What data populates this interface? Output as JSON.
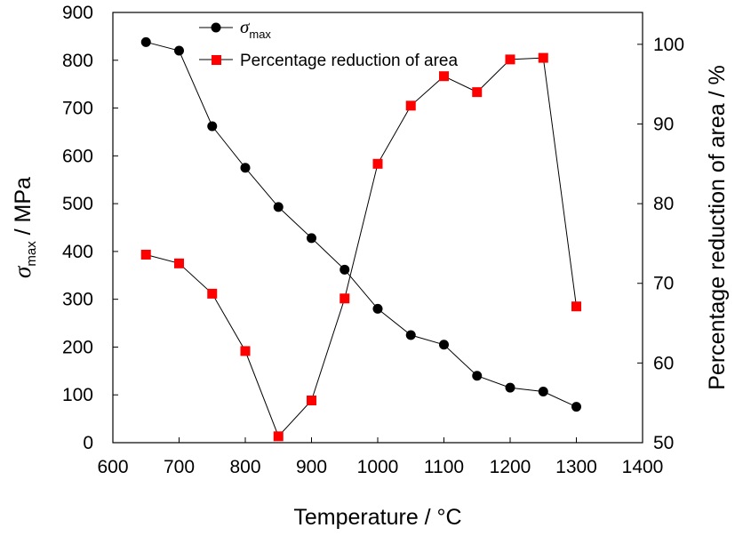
{
  "chart_data": {
    "type": "line",
    "xlabel": "Temperature / °C",
    "ylabel_left": {
      "symbol": "σ",
      "subscript": "max",
      "rest": " / MPa"
    },
    "ylabel_right": "Percentage reduction of area / %",
    "xlim": [
      600,
      1400
    ],
    "ylim_left": [
      0,
      900
    ],
    "ylim_right": [
      50,
      104
    ],
    "x_ticks": [
      "600",
      "700",
      "800",
      "900",
      "1000",
      "1100",
      "1200",
      "1300",
      "1400"
    ],
    "y_left_ticks": [
      "0",
      "100",
      "200",
      "300",
      "400",
      "500",
      "600",
      "700",
      "800",
      "900"
    ],
    "y_right_ticks": [
      "50",
      "60",
      "70",
      "80",
      "90",
      "100"
    ],
    "grid": false,
    "legend_position": "top-left",
    "series": [
      {
        "name": "σmax",
        "name_symbol": "σ",
        "name_subscript": "max",
        "axis": "left",
        "marker": "circle",
        "color": "#000000",
        "x": [
          650,
          700,
          750,
          800,
          850,
          900,
          950,
          1000,
          1050,
          1100,
          1150,
          1200,
          1250,
          1300
        ],
        "values": [
          838,
          820,
          662,
          575,
          493,
          428,
          362,
          280,
          225,
          205,
          140,
          115,
          107,
          75
        ]
      },
      {
        "name": "Percentage reduction of area",
        "axis": "right",
        "marker": "square",
        "color": "#ff0000",
        "x": [
          650,
          700,
          750,
          800,
          850,
          900,
          950,
          1000,
          1050,
          1100,
          1150,
          1200,
          1250,
          1300
        ],
        "values": [
          73.6,
          72.5,
          68.7,
          61.5,
          50.8,
          55.3,
          68.1,
          85.0,
          92.3,
          96.0,
          94.0,
          98.1,
          98.3,
          67.1
        ]
      }
    ]
  }
}
